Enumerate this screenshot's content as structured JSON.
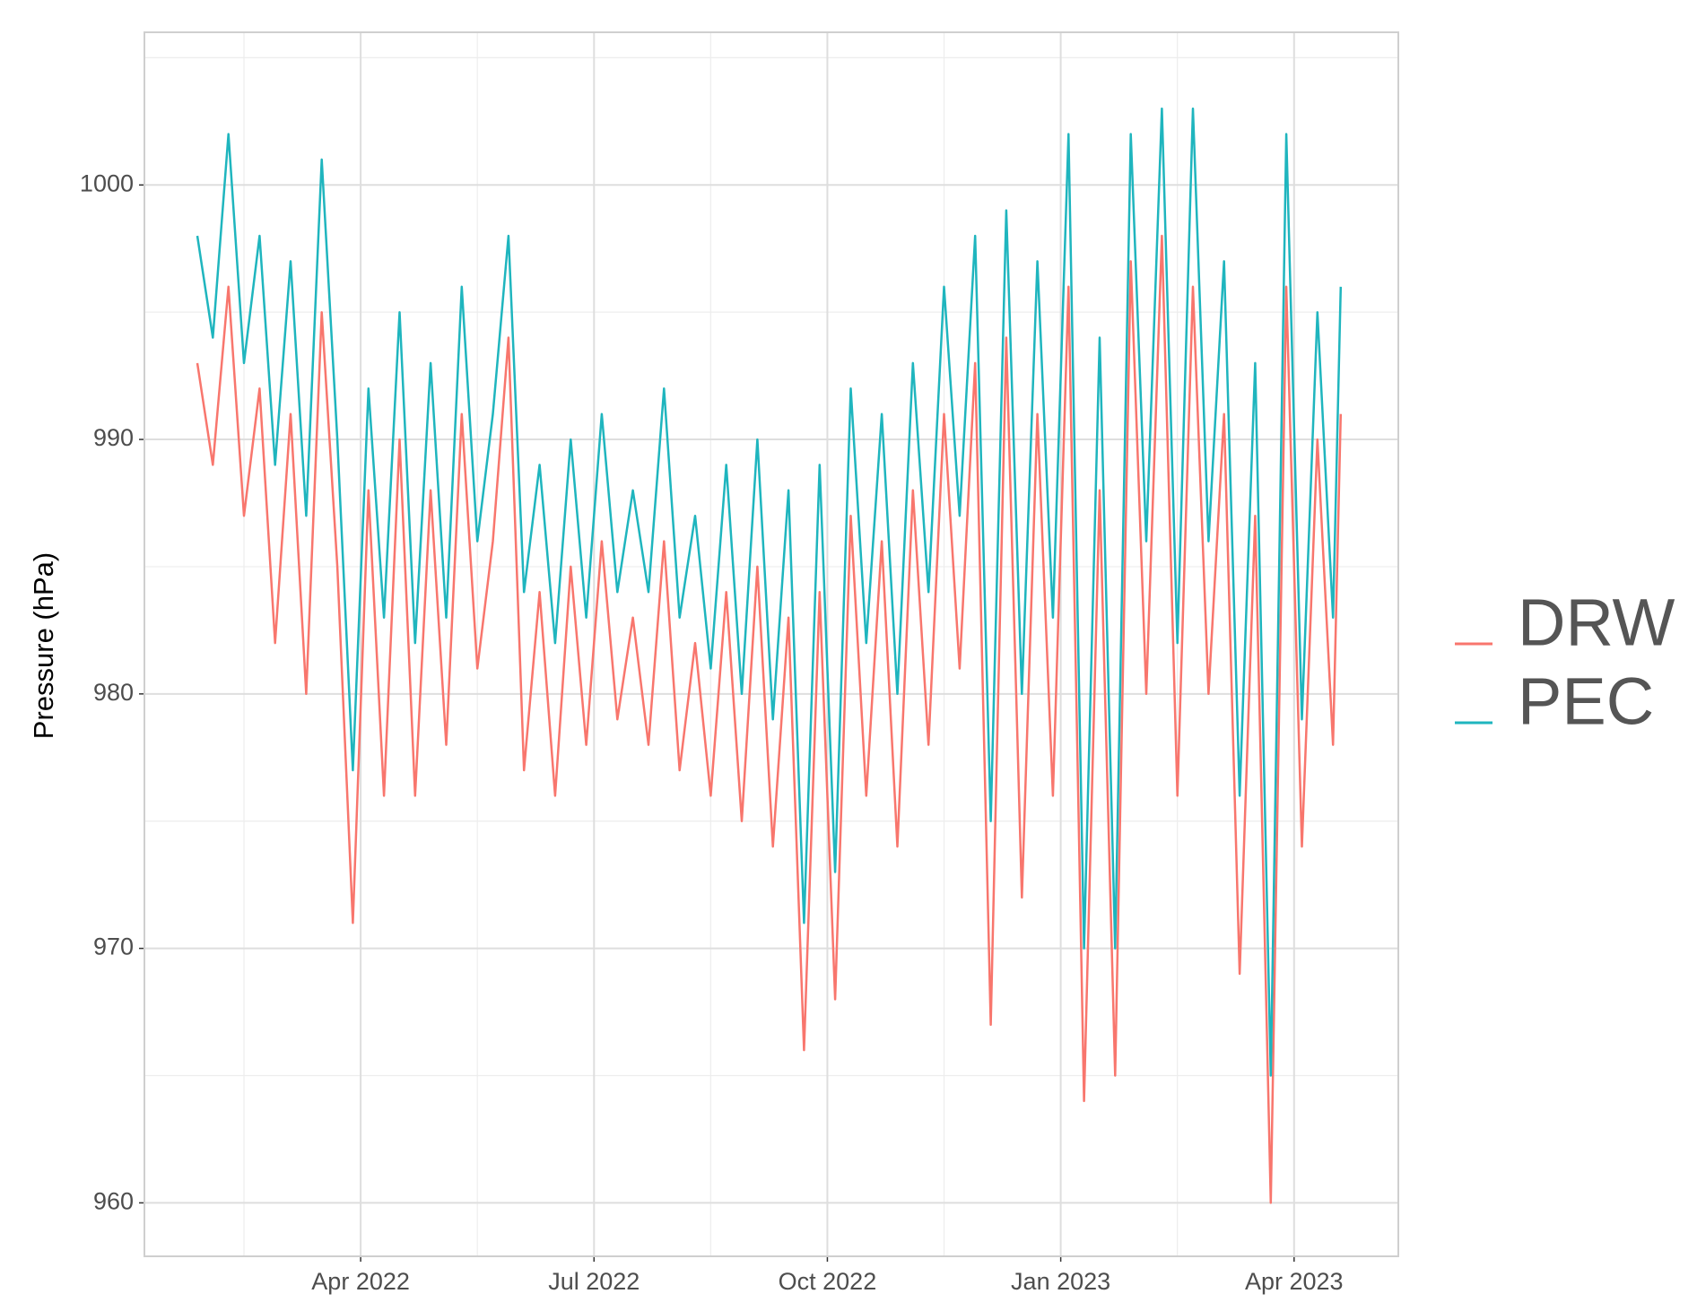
{
  "chart_data": {
    "type": "line",
    "y_title": "Pressure (hPa)",
    "x": [
      0.9,
      1.1,
      1.3,
      1.5,
      1.7,
      1.9,
      2.1,
      2.3,
      2.5,
      2.7,
      2.9,
      3.1,
      3.3,
      3.5,
      3.7,
      3.9,
      4.1,
      4.3,
      4.5,
      4.7,
      4.9,
      5.1,
      5.3,
      5.5,
      5.7,
      5.9,
      6.1,
      6.3,
      6.5,
      6.7,
      6.9,
      7.1,
      7.3,
      7.5,
      7.7,
      7.9,
      8.1,
      8.3,
      8.5,
      8.7,
      8.9,
      9.1,
      9.3,
      9.5,
      9.7,
      9.9,
      10.1,
      10.3,
      10.5,
      10.7,
      10.9,
      11.1,
      11.3,
      11.5,
      11.7,
      11.9,
      12.1,
      12.3,
      12.5,
      12.7,
      12.9,
      13.1,
      13.3,
      13.5,
      13.7,
      13.9,
      14.1,
      14.3,
      14.5,
      14.7,
      14.9,
      15.1,
      15.3,
      15.5,
      15.6
    ],
    "series": [
      {
        "name": "DRW",
        "color": "#f8766d",
        "values": [
          993,
          989,
          996,
          987,
          992,
          982,
          991,
          980,
          995,
          985,
          971,
          988,
          976,
          990,
          976,
          988,
          978,
          991,
          981,
          986,
          994,
          977,
          984,
          976,
          985,
          978,
          986,
          979,
          983,
          978,
          986,
          977,
          982,
          976,
          984,
          975,
          985,
          974,
          983,
          966,
          984,
          968,
          987,
          976,
          986,
          974,
          988,
          978,
          991,
          981,
          993,
          967,
          994,
          972,
          991,
          976,
          996,
          964,
          988,
          965,
          997,
          980,
          998,
          976,
          996,
          980,
          991,
          969,
          987,
          960,
          996,
          974,
          990,
          978,
          991
        ]
      },
      {
        "name": "PEC",
        "color": "#1fb5be",
        "values": [
          998,
          994,
          1002,
          993,
          998,
          989,
          997,
          987,
          1001,
          990,
          977,
          992,
          983,
          995,
          982,
          993,
          983,
          996,
          986,
          991,
          998,
          984,
          989,
          982,
          990,
          983,
          991,
          984,
          988,
          984,
          992,
          983,
          987,
          981,
          989,
          980,
          990,
          979,
          988,
          971,
          989,
          973,
          992,
          982,
          991,
          980,
          993,
          984,
          996,
          987,
          998,
          975,
          999,
          980,
          997,
          983,
          1002,
          970,
          994,
          970,
          1002,
          986,
          1003,
          982,
          1003,
          986,
          997,
          976,
          993,
          965,
          1002,
          979,
          995,
          983,
          996
        ]
      }
    ],
    "xlim": [
      0.22,
      16.34
    ],
    "xticks": [
      {
        "value": 3,
        "label": "Apr 2022"
      },
      {
        "value": 6,
        "label": "Jul 2022"
      },
      {
        "value": 9,
        "label": "Oct 2022"
      },
      {
        "value": 12,
        "label": "Jan 2023"
      },
      {
        "value": 15,
        "label": "Apr 2023"
      }
    ],
    "xminor": [
      1.5,
      4.5,
      7.5,
      10.5,
      13.5
    ],
    "ylim": [
      957.9,
      1006
    ],
    "yticks": [
      960,
      970,
      980,
      990,
      1000
    ],
    "yminor": [
      965,
      975,
      985,
      995,
      1005
    ],
    "grid": true,
    "legend": "right"
  }
}
